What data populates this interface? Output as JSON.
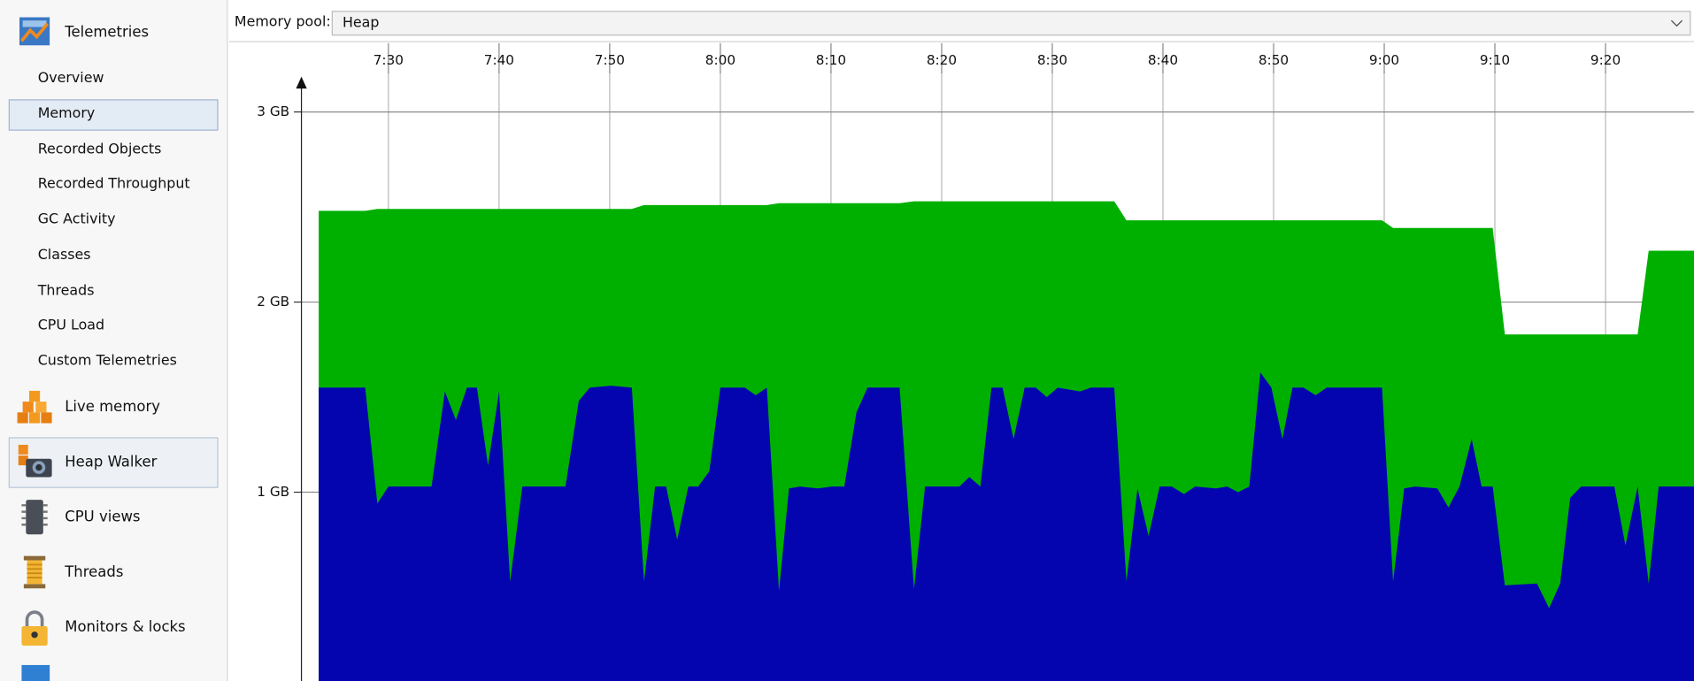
{
  "sidebar": {
    "header": "Telemetries",
    "telemetry_items": [
      "Overview",
      "Memory",
      "Recorded Objects",
      "Recorded Throughput",
      "GC Activity",
      "Classes",
      "Threads",
      "CPU Load",
      "Custom Telemetries"
    ],
    "views": [
      "Live memory",
      "Heap Walker",
      "CPU views",
      "Threads",
      "Monitors & locks"
    ]
  },
  "toolbar": {
    "label": "Memory pool:",
    "value": "Heap"
  },
  "chart_data": {
    "type": "area",
    "x": [
      443.7,
      447.9,
      449.0,
      450.0,
      452.4,
      453.9,
      455.1,
      456.1,
      457.1,
      458.0,
      459.0,
      460.0,
      461.0,
      462.1,
      463.7,
      466.0,
      467.2,
      468.2,
      470.1,
      472.0,
      473.1,
      474.1,
      475.1,
      476.1,
      477.1,
      478.0,
      479.0,
      480.0,
      482.2,
      483.2,
      484.2,
      485.3,
      486.2,
      487.2,
      488.8,
      490.1,
      491.2,
      492.3,
      493.3,
      496.2,
      497.5,
      498.5,
      499.6,
      501.6,
      502.5,
      503.5,
      504.5,
      505.5,
      506.5,
      507.5,
      508.5,
      509.5,
      510.5,
      512.5,
      513.5,
      515.6,
      516.7,
      517.7,
      518.7,
      519.7,
      520.8,
      521.9,
      522.9,
      524.8,
      525.8,
      526.8,
      527.8,
      528.8,
      529.8,
      530.8,
      531.7,
      532.7,
      533.8,
      534.8,
      539.8,
      540.8,
      541.8,
      542.8,
      544.8,
      545.8,
      546.8,
      547.9,
      548.8,
      549.8,
      550.9,
      553.8,
      554.9,
      555.9,
      556.8,
      557.8,
      560.8,
      561.8,
      562.9,
      563.9,
      564.8,
      568.0
    ],
    "series": [
      {
        "color": "#00b000",
        "values": [
          2.48,
          2.48,
          2.49,
          2.49,
          2.49,
          2.49,
          2.49,
          2.49,
          2.49,
          2.49,
          2.49,
          2.49,
          2.49,
          2.49,
          2.49,
          2.49,
          2.49,
          2.49,
          2.49,
          2.49,
          2.51,
          2.51,
          2.51,
          2.51,
          2.51,
          2.51,
          2.51,
          2.51,
          2.51,
          2.51,
          2.51,
          2.52,
          2.52,
          2.52,
          2.52,
          2.52,
          2.52,
          2.52,
          2.52,
          2.52,
          2.53,
          2.53,
          2.53,
          2.53,
          2.53,
          2.53,
          2.53,
          2.53,
          2.53,
          2.53,
          2.53,
          2.53,
          2.53,
          2.53,
          2.53,
          2.53,
          2.43,
          2.43,
          2.43,
          2.43,
          2.43,
          2.43,
          2.43,
          2.43,
          2.43,
          2.43,
          2.43,
          2.43,
          2.43,
          2.43,
          2.43,
          2.43,
          2.43,
          2.43,
          2.43,
          2.39,
          2.39,
          2.39,
          2.39,
          2.39,
          2.39,
          2.39,
          2.39,
          2.39,
          1.83,
          1.83,
          1.83,
          1.83,
          1.83,
          1.83,
          1.83,
          1.83,
          1.83,
          2.27,
          2.27,
          2.27
        ]
      },
      {
        "color": "#0505b0",
        "values": [
          1.55,
          1.55,
          0.94,
          1.03,
          1.03,
          1.03,
          1.53,
          1.38,
          1.55,
          1.55,
          1.14,
          1.53,
          0.53,
          1.03,
          1.03,
          1.03,
          1.48,
          1.55,
          1.56,
          1.55,
          0.53,
          1.03,
          1.03,
          0.75,
          1.03,
          1.03,
          1.11,
          1.55,
          1.55,
          1.51,
          1.55,
          0.48,
          1.02,
          1.03,
          1.02,
          1.03,
          1.03,
          1.42,
          1.55,
          1.55,
          0.49,
          1.03,
          1.03,
          1.03,
          1.08,
          1.03,
          1.55,
          1.55,
          1.28,
          1.55,
          1.55,
          1.5,
          1.55,
          1.53,
          1.55,
          1.55,
          0.53,
          1.02,
          0.77,
          1.03,
          1.03,
          0.99,
          1.03,
          1.02,
          1.03,
          1.0,
          1.03,
          1.63,
          1.55,
          1.28,
          1.55,
          1.55,
          1.51,
          1.55,
          1.55,
          0.53,
          1.02,
          1.03,
          1.02,
          0.92,
          1.03,
          1.28,
          1.03,
          1.03,
          0.51,
          0.52,
          0.39,
          0.52,
          0.97,
          1.03,
          1.03,
          0.72,
          1.03,
          0.52,
          1.03,
          1.03
        ]
      }
    ],
    "xlim": [
      443.7,
      568.0
    ],
    "xticks": [
      {
        "value": 450,
        "label": "7:30"
      },
      {
        "value": 460,
        "label": "7:40"
      },
      {
        "value": 470,
        "label": "7:50"
      },
      {
        "value": 480,
        "label": "8:00"
      },
      {
        "value": 490,
        "label": "8:10"
      },
      {
        "value": 500,
        "label": "8:20"
      },
      {
        "value": 510,
        "label": "8:30"
      },
      {
        "value": 520,
        "label": "8:40"
      },
      {
        "value": 530,
        "label": "8:50"
      },
      {
        "value": 540,
        "label": "9:00"
      },
      {
        "value": 550,
        "label": "9:10"
      },
      {
        "value": 560,
        "label": "9:20"
      }
    ],
    "ylim": [
      0,
      3.18
    ],
    "yticks": [
      {
        "value": 1,
        "label": "1 GB"
      },
      {
        "value": 2,
        "label": "2 GB"
      },
      {
        "value": 3,
        "label": "3 GB"
      }
    ],
    "grid": true
  }
}
